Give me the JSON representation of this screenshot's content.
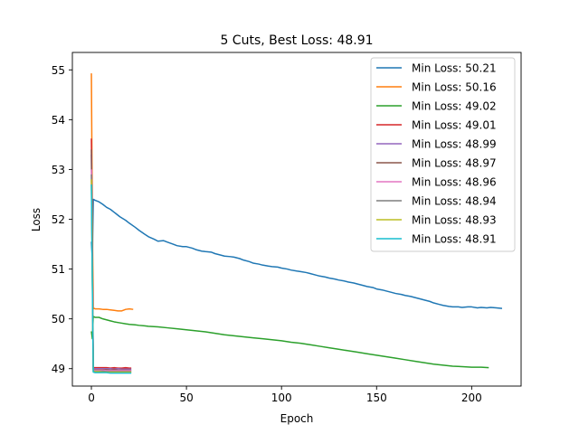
{
  "chart_data": {
    "type": "line",
    "title": "5 Cuts, Best Loss: 48.91",
    "xlabel": "Epoch",
    "ylabel": "Loss",
    "xlim": [
      -10,
      226
    ],
    "ylim": [
      48.65,
      55.35
    ],
    "xticks": [
      0,
      50,
      100,
      150,
      200
    ],
    "yticks": [
      49,
      50,
      51,
      52,
      53,
      54,
      55
    ],
    "grid": false,
    "legend_position": "top-right",
    "series": [
      {
        "name": "Min Loss: 50.21",
        "color": "#1f77b4",
        "x": [
          0,
          0.5,
          1,
          2,
          4,
          6,
          8,
          10,
          12,
          15,
          18,
          20,
          23,
          25,
          28,
          30,
          33,
          35,
          38,
          40,
          43,
          45,
          48,
          50,
          53,
          55,
          58,
          60,
          63,
          65,
          68,
          70,
          73,
          75,
          78,
          80,
          83,
          85,
          88,
          90,
          93,
          95,
          98,
          100,
          103,
          105,
          108,
          110,
          113,
          115,
          118,
          120,
          123,
          125,
          128,
          130,
          133,
          135,
          138,
          140,
          143,
          145,
          148,
          150,
          153,
          155,
          158,
          160,
          163,
          165,
          168,
          170,
          173,
          175,
          178,
          180,
          183,
          185,
          188,
          190,
          193,
          195,
          198,
          200,
          203,
          205,
          208,
          210,
          213,
          216
        ],
        "y": [
          51.55,
          51.2,
          52.4,
          52.38,
          52.35,
          52.3,
          52.24,
          52.2,
          52.14,
          52.05,
          51.98,
          51.92,
          51.84,
          51.78,
          51.7,
          51.65,
          51.6,
          51.56,
          51.57,
          51.54,
          51.5,
          51.47,
          51.45,
          51.45,
          51.42,
          51.39,
          51.36,
          51.35,
          51.34,
          51.31,
          51.28,
          51.26,
          51.25,
          51.24,
          51.21,
          51.18,
          51.15,
          51.12,
          51.1,
          51.08,
          51.06,
          51.05,
          51.04,
          51.02,
          51.0,
          50.98,
          50.96,
          50.95,
          50.93,
          50.91,
          50.88,
          50.86,
          50.84,
          50.82,
          50.8,
          50.78,
          50.76,
          50.74,
          50.72,
          50.7,
          50.67,
          50.65,
          50.63,
          50.6,
          50.58,
          50.56,
          50.53,
          50.51,
          50.49,
          50.47,
          50.45,
          50.43,
          50.4,
          50.38,
          50.35,
          50.32,
          50.29,
          50.27,
          50.25,
          50.24,
          50.24,
          50.23,
          50.24,
          50.24,
          50.22,
          50.23,
          50.22,
          50.23,
          50.22,
          50.21
        ]
      },
      {
        "name": "Min Loss: 50.16",
        "color": "#ff7f0e",
        "x": [
          0,
          0.5,
          1,
          1.5,
          2,
          4,
          6,
          8,
          10,
          12,
          14,
          16,
          18,
          20,
          22
        ],
        "y": [
          54.93,
          52.0,
          50.2,
          50.21,
          50.2,
          50.2,
          50.19,
          50.19,
          50.18,
          50.17,
          50.16,
          50.16,
          50.19,
          50.2,
          50.19
        ]
      },
      {
        "name": "Min Loss: 49.02",
        "color": "#2ca02c",
        "x": [
          0,
          0.5,
          1,
          2,
          4,
          6,
          8,
          10,
          12,
          15,
          18,
          20,
          23,
          25,
          28,
          30,
          35,
          40,
          45,
          50,
          55,
          60,
          65,
          70,
          75,
          80,
          85,
          90,
          95,
          100,
          105,
          110,
          115,
          120,
          125,
          130,
          135,
          140,
          145,
          150,
          155,
          160,
          165,
          170,
          175,
          180,
          185,
          190,
          195,
          200,
          205,
          209
        ],
        "y": [
          49.75,
          49.6,
          50.05,
          50.03,
          50.03,
          50.0,
          49.98,
          49.96,
          49.94,
          49.92,
          49.9,
          49.89,
          49.88,
          49.87,
          49.86,
          49.85,
          49.84,
          49.82,
          49.8,
          49.78,
          49.76,
          49.74,
          49.71,
          49.68,
          49.66,
          49.64,
          49.62,
          49.6,
          49.58,
          49.56,
          49.53,
          49.51,
          49.48,
          49.45,
          49.42,
          49.39,
          49.36,
          49.33,
          49.3,
          49.27,
          49.24,
          49.21,
          49.18,
          49.15,
          49.12,
          49.09,
          49.07,
          49.05,
          49.04,
          49.03,
          49.03,
          49.02
        ]
      },
      {
        "name": "Min Loss: 49.01",
        "color": "#d62728",
        "x": [
          0,
          0.5,
          1,
          2,
          4,
          6,
          8,
          10,
          12,
          14,
          16,
          18,
          20,
          21
        ],
        "y": [
          53.62,
          51.5,
          49.02,
          49.02,
          49.02,
          49.02,
          49.02,
          49.01,
          49.02,
          49.01,
          49.01,
          49.02,
          49.01,
          49.01
        ]
      },
      {
        "name": "Min Loss: 48.99",
        "color": "#9467bd",
        "x": [
          0,
          0.5,
          1,
          2,
          4,
          6,
          8,
          10,
          12,
          14,
          16,
          18,
          20,
          21
        ],
        "y": [
          53.3,
          51.0,
          49.0,
          49.0,
          49.0,
          49.0,
          49.0,
          49.0,
          48.99,
          49.0,
          48.99,
          48.99,
          48.99,
          48.99
        ]
      },
      {
        "name": "Min Loss: 48.97",
        "color": "#8c564b",
        "x": [
          0,
          0.5,
          1,
          2,
          4,
          6,
          8,
          10,
          12,
          14,
          16,
          18,
          20,
          21
        ],
        "y": [
          53.4,
          51.2,
          48.98,
          48.98,
          48.98,
          48.98,
          48.98,
          48.97,
          48.98,
          48.97,
          48.97,
          48.97,
          48.97,
          48.97
        ]
      },
      {
        "name": "Min Loss: 48.96",
        "color": "#e377c2",
        "x": [
          0,
          0.5,
          1,
          2,
          4,
          6,
          8,
          10,
          12,
          14,
          16,
          18,
          20,
          21
        ],
        "y": [
          53.0,
          51.0,
          48.97,
          48.97,
          48.97,
          48.97,
          48.96,
          48.96,
          48.96,
          48.96,
          48.96,
          48.96,
          48.96,
          48.96
        ]
      },
      {
        "name": "Min Loss: 48.94",
        "color": "#7f7f7f",
        "x": [
          0,
          0.5,
          1,
          2,
          4,
          6,
          8,
          10,
          12,
          14,
          16,
          18,
          20,
          21
        ],
        "y": [
          52.9,
          50.9,
          48.95,
          48.95,
          48.95,
          48.95,
          48.94,
          48.94,
          48.94,
          48.94,
          48.94,
          48.94,
          48.94,
          48.94
        ]
      },
      {
        "name": "Min Loss: 48.93",
        "color": "#bcbd22",
        "x": [
          0,
          0.5,
          1,
          2,
          4,
          6,
          8,
          10,
          12,
          14,
          16,
          18,
          20,
          21
        ],
        "y": [
          52.8,
          50.8,
          48.94,
          48.94,
          48.94,
          48.93,
          48.93,
          48.93,
          48.93,
          48.93,
          48.93,
          48.93,
          48.93,
          48.93
        ]
      },
      {
        "name": "Min Loss: 48.91",
        "color": "#17becf",
        "x": [
          0,
          0.5,
          1,
          2,
          4,
          6,
          8,
          10,
          12,
          14,
          16,
          18,
          20,
          21
        ],
        "y": [
          52.7,
          50.7,
          48.93,
          48.92,
          48.92,
          48.92,
          48.92,
          48.91,
          48.91,
          48.91,
          48.91,
          48.91,
          48.91,
          48.91
        ]
      }
    ]
  }
}
